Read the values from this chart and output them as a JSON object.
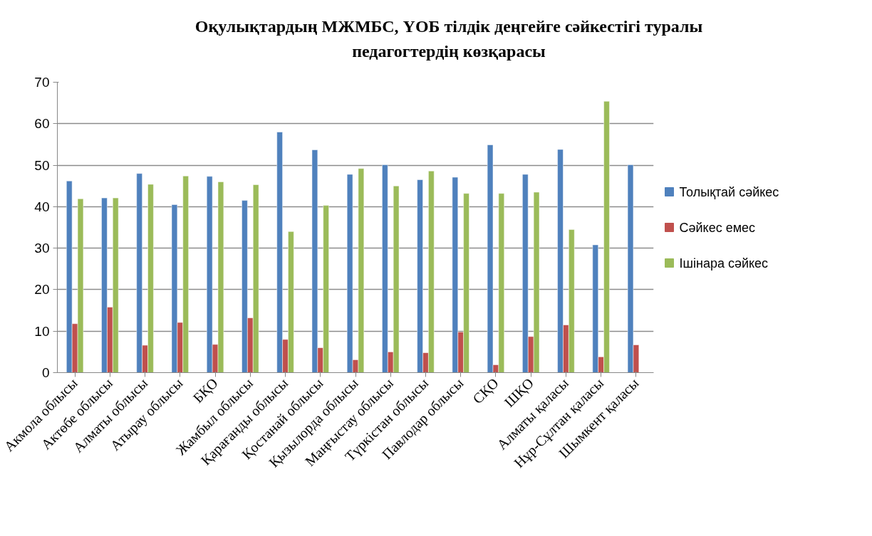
{
  "chart_data": {
    "type": "bar",
    "title": "Оқулықтардың МЖМБС, ҮОБ тілдік деңгейге сәйкестігі туралы педагогтердің көзқарасы",
    "categories": [
      "Акмола облысы",
      "Актөбе облысы",
      "Алматы облысы",
      "Атырау облысы",
      "БҚО",
      "Жамбыл облысы",
      "Қарағанды облысы",
      "Қостанай облысы",
      "Қызылорда облысы",
      "Маңғыстау облысы",
      "Түркістан облысы",
      "Павлодар облысы",
      "СҚО",
      "ШҚО",
      "Алматы қаласы",
      "Нұр-Сұлтан қаласы",
      "Шымкент қаласы"
    ],
    "series": [
      {
        "name": "Толықтай сәйкес",
        "color": "#4f81bd",
        "values": [
          46.2,
          42.1,
          48.0,
          40.5,
          47.3,
          41.5,
          58.0,
          53.7,
          47.8,
          50.1,
          46.5,
          47.1,
          54.9,
          47.8,
          53.8,
          30.8,
          50.1
        ]
      },
      {
        "name": "Сәйкес емес",
        "color": "#c0504d",
        "values": [
          11.8,
          15.8,
          6.6,
          12.1,
          6.8,
          13.2,
          8.0,
          6.0,
          3.1,
          5.0,
          4.8,
          9.8,
          1.9,
          8.7,
          11.5,
          3.8,
          6.7
        ]
      },
      {
        "name": "Ішінара сәйкес",
        "color": "#9bbb59",
        "values": [
          41.9,
          42.1,
          45.4,
          47.4,
          46.0,
          45.3,
          34.0,
          40.3,
          49.2,
          45.0,
          48.6,
          43.2,
          43.2,
          43.5,
          34.5,
          65.4,
          null
        ]
      }
    ],
    "ylim": [
      0,
      70
    ],
    "yticks": [
      0,
      10,
      20,
      30,
      40,
      50,
      60,
      70
    ],
    "grid": "y",
    "legend": "right"
  }
}
